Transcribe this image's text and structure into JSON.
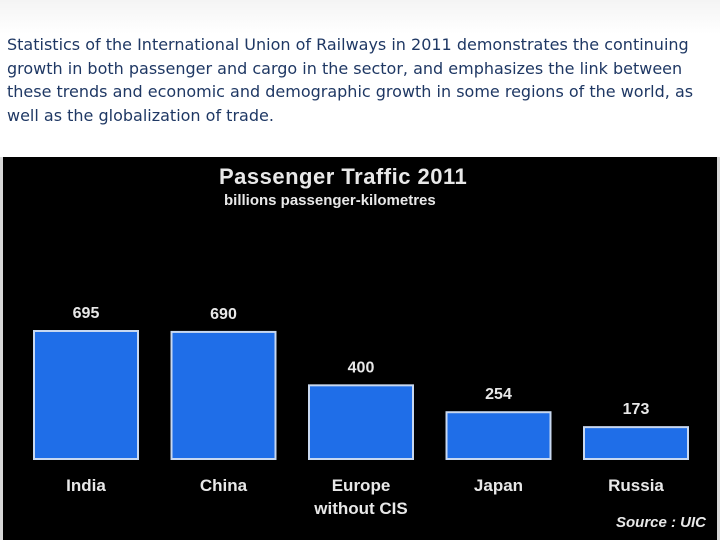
{
  "intro_text": "Statistics of the International Union of Railways in 2011 demonstrates the continuing growth in both passenger and cargo in the sector, and emphasizes the link between these trends and economic and demographic growth in some regions of the world, as well as the globalization of trade.",
  "colors": {
    "bar": "#1f6ee8",
    "bar_border": "#c8d8f0",
    "panel": "#000000",
    "text_light": "#e8e8e8",
    "intro_text": "#1f3864"
  },
  "chart_data": {
    "type": "bar",
    "title": "Passenger Traffic 2011",
    "subtitle": "billions passenger-kilometres",
    "categories": [
      [
        "India"
      ],
      [
        "China"
      ],
      [
        "Europe",
        "without CIS"
      ],
      [
        "Japan"
      ],
      [
        "Russia"
      ]
    ],
    "values": [
      695,
      690,
      400,
      254,
      173
    ],
    "data_labels": [
      "695",
      "690",
      "400",
      "254",
      "173"
    ],
    "source": "Source : UIC",
    "xlabel": "",
    "ylabel": "",
    "grid": false,
    "legend": "none"
  }
}
